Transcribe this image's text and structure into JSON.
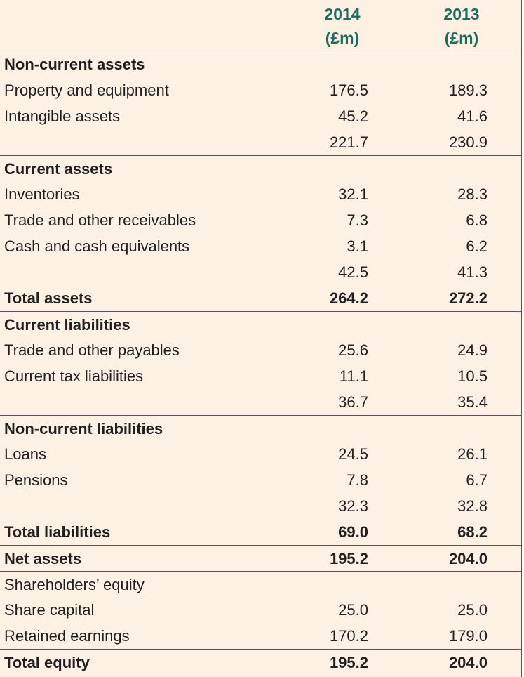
{
  "header": {
    "col1_year": "2014",
    "col1_unit": "(£m)",
    "col2_year": "2013",
    "col2_unit": "(£m)"
  },
  "rows": [
    {
      "label": "Non-current assets",
      "v2014": "",
      "v2013": ""
    },
    {
      "label": "Property and equipment",
      "v2014": "176.5",
      "v2013": "189.3"
    },
    {
      "label": "Intangible assets",
      "v2014": "45.2",
      "v2013": "41.6"
    },
    {
      "label": "",
      "v2014": "221.7",
      "v2013": "230.9"
    },
    {
      "label": "Current assets",
      "v2014": "",
      "v2013": ""
    },
    {
      "label": "Inventories",
      "v2014": "32.1",
      "v2013": "28.3"
    },
    {
      "label": "Trade and other receivables",
      "v2014": "7.3",
      "v2013": "6.8"
    },
    {
      "label": "Cash and cash equivalents",
      "v2014": "3.1",
      "v2013": "6.2"
    },
    {
      "label": "",
      "v2014": "42.5",
      "v2013": "41.3"
    },
    {
      "label": "Total assets",
      "v2014": "264.2",
      "v2013": "272.2"
    },
    {
      "label": "Current liabilities",
      "v2014": "",
      "v2013": ""
    },
    {
      "label": "Trade and other payables",
      "v2014": "25.6",
      "v2013": "24.9"
    },
    {
      "label": "Current tax liabilities",
      "v2014": "11.1",
      "v2013": "10.5"
    },
    {
      "label": "",
      "v2014": "36.7",
      "v2013": "35.4"
    },
    {
      "label": "Non-current liabilities",
      "v2014": "",
      "v2013": ""
    },
    {
      "label": "Loans",
      "v2014": "24.5",
      "v2013": "26.1"
    },
    {
      "label": "Pensions",
      "v2014": "7.8",
      "v2013": "6.7"
    },
    {
      "label": "",
      "v2014": "32.3",
      "v2013": "32.8"
    },
    {
      "label": "Total liabilities",
      "v2014": "69.0",
      "v2013": "68.2"
    },
    {
      "label": "Net assets",
      "v2014": "195.2",
      "v2013": "204.0"
    },
    {
      "label": "Shareholders’ equity",
      "v2014": "",
      "v2013": ""
    },
    {
      "label": "Share capital",
      "v2014": "25.0",
      "v2013": "25.0"
    },
    {
      "label": "Retained earnings",
      "v2014": "170.2",
      "v2013": "179.0"
    },
    {
      "label": "Total equity",
      "v2014": "195.2",
      "v2013": "204.0"
    }
  ],
  "colors": {
    "accent": "#1f6b5e",
    "background": "#fdf1e4",
    "text": "#231f20"
  }
}
